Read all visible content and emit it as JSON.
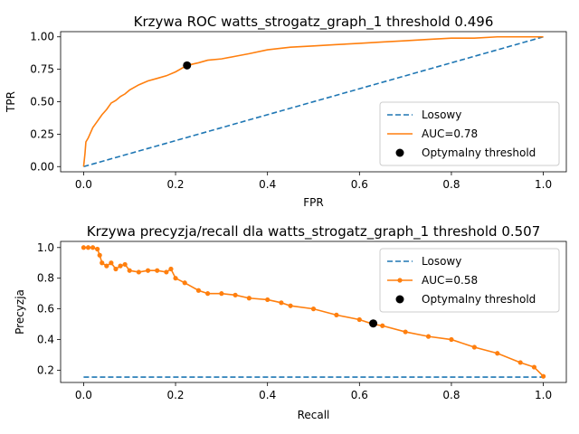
{
  "chart_data": [
    {
      "type": "line",
      "title": "Krzywa ROC watts_strogatz_graph_1 threshold  0.496",
      "xlabel": "FPR",
      "ylabel": "TPR",
      "xlim": [
        -0.05,
        1.05
      ],
      "ylim": [
        -0.04,
        1.04
      ],
      "xticks": [
        0.0,
        0.2,
        0.4,
        0.6,
        0.8,
        1.0
      ],
      "yticks": [
        0.0,
        0.25,
        0.5,
        0.75,
        1.0
      ],
      "xtick_labels": [
        "0.0",
        "0.2",
        "0.4",
        "0.6",
        "0.8",
        "1.0"
      ],
      "ytick_labels": [
        "0.00",
        "0.25",
        "0.50",
        "0.75",
        "1.00"
      ],
      "grid": false,
      "legend_position": "lower-right",
      "series": [
        {
          "name": "Losowy",
          "style": "dashed",
          "color": "#1f77b4",
          "x": [
            0,
            1
          ],
          "y": [
            0,
            1
          ]
        },
        {
          "name": "AUC=0.78",
          "style": "solid",
          "color": "#ff7f0e",
          "x": [
            0,
            0.003,
            0.005,
            0.01,
            0.02,
            0.03,
            0.04,
            0.05,
            0.06,
            0.07,
            0.08,
            0.09,
            0.1,
            0.12,
            0.14,
            0.16,
            0.18,
            0.2,
            0.225,
            0.25,
            0.27,
            0.3,
            0.33,
            0.36,
            0.4,
            0.45,
            0.5,
            0.55,
            0.6,
            0.65,
            0.7,
            0.75,
            0.8,
            0.85,
            0.9,
            0.95,
            1.0
          ],
          "y": [
            0,
            0.1,
            0.19,
            0.22,
            0.3,
            0.35,
            0.4,
            0.44,
            0.49,
            0.51,
            0.54,
            0.56,
            0.59,
            0.63,
            0.66,
            0.68,
            0.7,
            0.73,
            0.78,
            0.8,
            0.82,
            0.83,
            0.85,
            0.87,
            0.9,
            0.92,
            0.93,
            0.94,
            0.95,
            0.96,
            0.97,
            0.98,
            0.99,
            0.99,
            1.0,
            1.0,
            1.0
          ]
        },
        {
          "name": "Optymalny threshold",
          "style": "point",
          "color": "#000000",
          "x": [
            0.225
          ],
          "y": [
            0.78
          ]
        }
      ]
    },
    {
      "type": "line",
      "title": "Krzywa precyzja/recall dla watts_strogatz_graph_1 threshold  0.507",
      "xlabel": "Recall",
      "ylabel": "Precyzja",
      "xlim": [
        -0.05,
        1.05
      ],
      "ylim": [
        0.12,
        1.04
      ],
      "xticks": [
        0.0,
        0.2,
        0.4,
        0.6,
        0.8,
        1.0
      ],
      "yticks": [
        0.2,
        0.4,
        0.6,
        0.8,
        1.0
      ],
      "xtick_labels": [
        "0.0",
        "0.2",
        "0.4",
        "0.6",
        "0.8",
        "1.0"
      ],
      "ytick_labels": [
        "0.2",
        "0.4",
        "0.6",
        "0.8",
        "1.0"
      ],
      "grid": false,
      "legend_position": "top-right",
      "series": [
        {
          "name": "Losowy",
          "style": "dashed",
          "color": "#1f77b4",
          "x": [
            0,
            1
          ],
          "y": [
            0.155,
            0.155
          ]
        },
        {
          "name": "AUC=0.58",
          "style": "line-markers",
          "color": "#ff7f0e",
          "x": [
            0,
            0.01,
            0.02,
            0.03,
            0.035,
            0.04,
            0.05,
            0.06,
            0.07,
            0.08,
            0.09,
            0.1,
            0.12,
            0.14,
            0.16,
            0.18,
            0.19,
            0.2,
            0.22,
            0.25,
            0.27,
            0.3,
            0.33,
            0.36,
            0.4,
            0.43,
            0.45,
            0.5,
            0.55,
            0.6,
            0.63,
            0.65,
            0.7,
            0.75,
            0.8,
            0.85,
            0.9,
            0.95,
            0.98,
            1.0
          ],
          "y": [
            1.0,
            1.0,
            1.0,
            0.99,
            0.95,
            0.9,
            0.88,
            0.9,
            0.86,
            0.88,
            0.89,
            0.85,
            0.84,
            0.85,
            0.85,
            0.84,
            0.86,
            0.8,
            0.77,
            0.72,
            0.7,
            0.7,
            0.69,
            0.67,
            0.66,
            0.64,
            0.62,
            0.6,
            0.56,
            0.53,
            0.5,
            0.49,
            0.45,
            0.42,
            0.4,
            0.35,
            0.31,
            0.25,
            0.22,
            0.16
          ]
        },
        {
          "name": "Optymalny threshold",
          "style": "point",
          "color": "#000000",
          "x": [
            0.63
          ],
          "y": [
            0.505
          ]
        }
      ]
    }
  ]
}
